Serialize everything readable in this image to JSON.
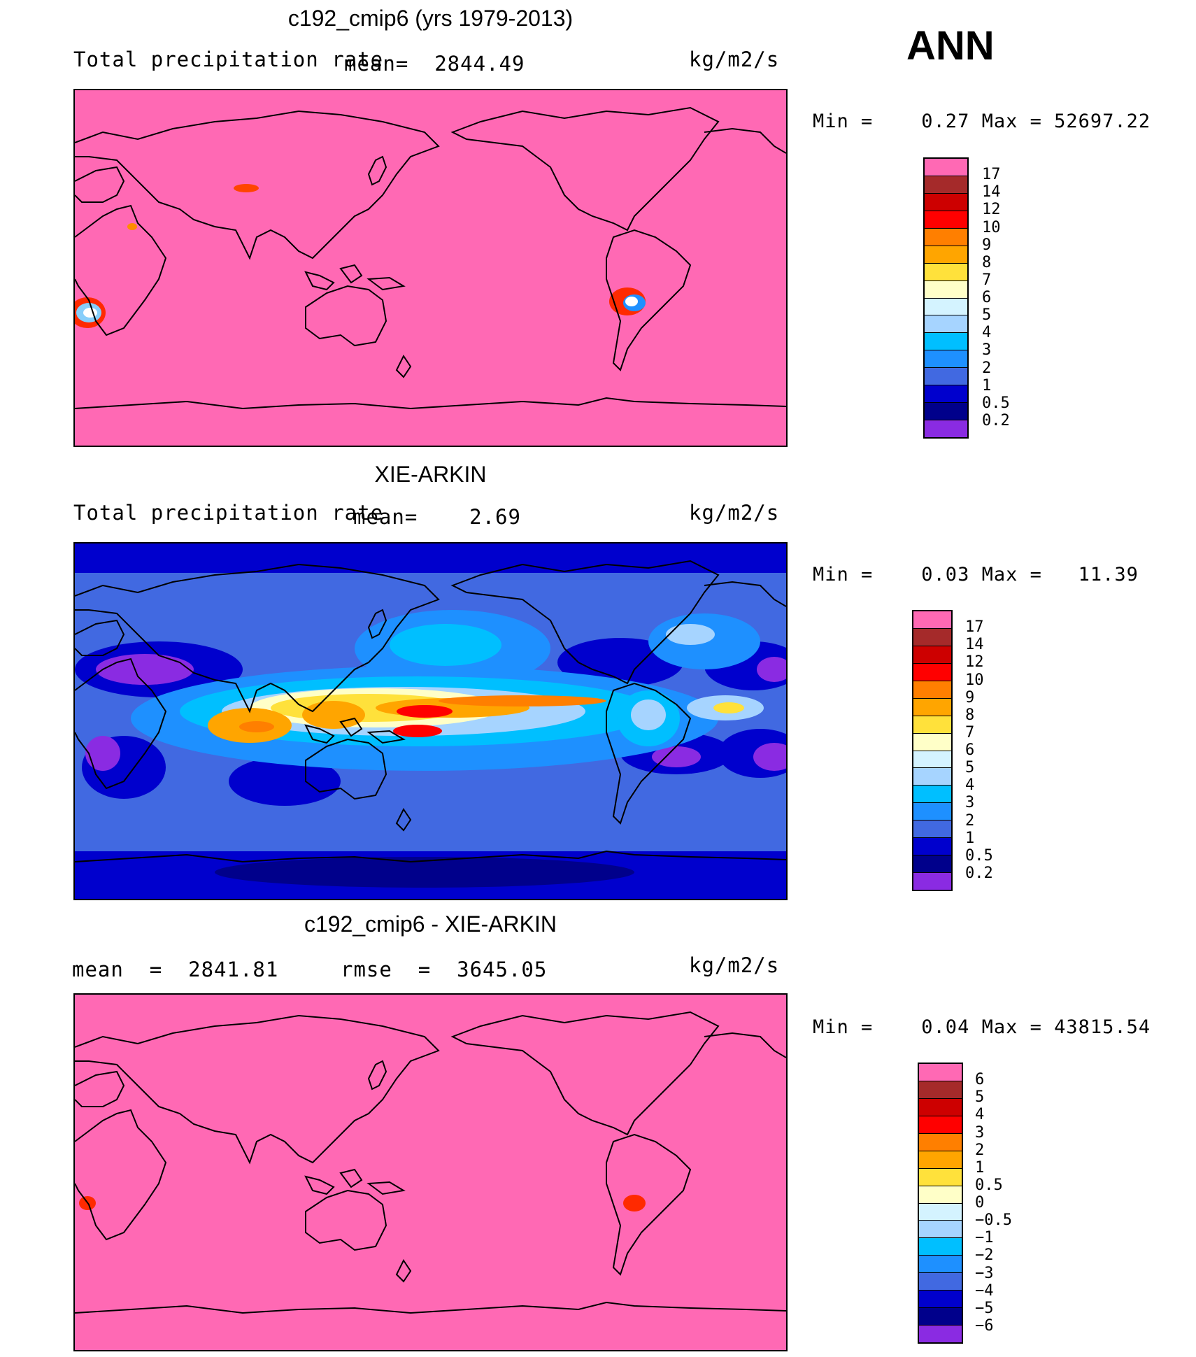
{
  "season": "ANN",
  "panels": [
    {
      "title": "c192_cmip6 (yrs 1979-2013)",
      "left_label": "Total precipitation rate",
      "mid_label": "mean=  2844.49",
      "units": "kg/m2/s",
      "minmax": "Min =    0.27 Max = 52697.22",
      "colorbar_labels": [
        "17",
        "14",
        "12",
        "10",
        "9",
        "8",
        "7",
        "6",
        "5",
        "4",
        "3",
        "2",
        "1",
        "0.5",
        "0.2"
      ]
    },
    {
      "title": "XIE-ARKIN",
      "left_label": "Total precipitation rate",
      "mid_label": "mean=    2.69",
      "units": "kg/m2/s",
      "minmax": "Min =    0.03 Max =   11.39",
      "colorbar_labels": [
        "17",
        "14",
        "12",
        "10",
        "9",
        "8",
        "7",
        "6",
        "5",
        "4",
        "3",
        "2",
        "1",
        "0.5",
        "0.2"
      ]
    },
    {
      "title": "c192_cmip6 - XIE-ARKIN",
      "left_label": "mean  =  2841.81",
      "mid_label": "rmse  =  3645.05",
      "units": "kg/m2/s",
      "minmax": "Min =    0.04 Max = 43815.54",
      "colorbar_labels": [
        "6",
        "5",
        "4",
        "3",
        "2",
        "1",
        "0.5",
        "0",
        "−0.5",
        "−1",
        "−2",
        "−3",
        "−4",
        "−5",
        "−6"
      ]
    }
  ],
  "colorbar_colors": [
    "#ff69b4",
    "#a52a2a",
    "#cd0000",
    "#ff0000",
    "#ff7f00",
    "#ffa500",
    "#ffe13b",
    "#ffffc8",
    "#d4f3ff",
    "#a6d4ff",
    "#00bfff",
    "#1e90ff",
    "#4169e1",
    "#0000cd",
    "#00008b",
    "#8a2be2"
  ],
  "colors": {
    "pink": "#ff69b4",
    "ocean_low": "#0000cd",
    "ocean_mid": "#4169e1"
  }
}
